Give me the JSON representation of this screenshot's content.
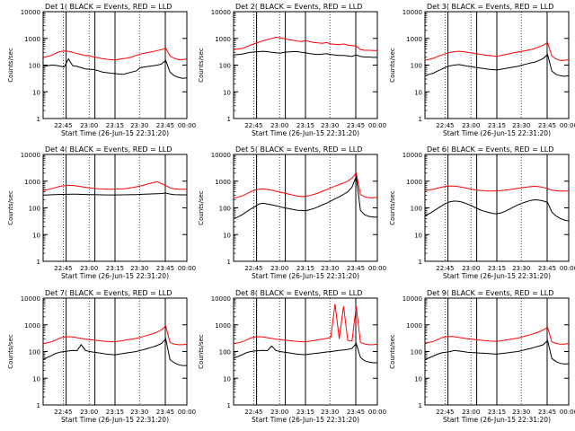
{
  "chart_data": {
    "type": "line",
    "panels": [
      {
        "title": "Det 1( BLACK = Events, RED = LLD",
        "black": [
          90,
          95,
          100,
          98,
          92,
          85,
          170,
          95,
          90,
          80,
          72,
          70,
          68,
          62,
          55,
          52,
          50,
          48,
          46,
          45,
          50,
          55,
          60,
          80,
          85,
          90,
          95,
          100,
          110,
          150,
          55,
          40,
          35,
          32,
          33
        ],
        "red": [
          190,
          210,
          230,
          280,
          320,
          340,
          330,
          300,
          270,
          250,
          230,
          220,
          200,
          190,
          175,
          165,
          160,
          155,
          165,
          175,
          185,
          200,
          230,
          260,
          280,
          300,
          320,
          350,
          380,
          430,
          220,
          180,
          160,
          160,
          170
        ]
      },
      {
        "title": "Det 2( BLACK = Events, RED = LLD",
        "black": [
          240,
          250,
          260,
          280,
          300,
          310,
          320,
          330,
          320,
          300,
          290,
          280,
          300,
          310,
          320,
          320,
          300,
          290,
          270,
          260,
          250,
          260,
          270,
          250,
          240,
          230,
          230,
          220,
          210,
          240,
          210,
          200,
          200,
          195,
          195
        ],
        "red": [
          380,
          400,
          420,
          480,
          560,
          640,
          720,
          820,
          900,
          1000,
          1100,
          1050,
          980,
          900,
          860,
          800,
          760,
          820,
          760,
          700,
          680,
          650,
          700,
          620,
          600,
          580,
          620,
          560,
          540,
          520,
          380,
          360,
          360,
          350,
          350
        ]
      },
      {
        "title": "Det 3( BLACK = Events, RED = LLD",
        "black": [
          40,
          45,
          50,
          60,
          70,
          85,
          95,
          100,
          105,
          98,
          92,
          88,
          82,
          78,
          74,
          70,
          68,
          66,
          70,
          75,
          80,
          85,
          90,
          100,
          110,
          120,
          130,
          150,
          180,
          250,
          60,
          45,
          40,
          38,
          40
        ],
        "red": [
          150,
          165,
          180,
          210,
          240,
          270,
          300,
          320,
          330,
          320,
          300,
          285,
          270,
          255,
          240,
          230,
          220,
          210,
          230,
          250,
          270,
          290,
          310,
          330,
          350,
          380,
          420,
          480,
          560,
          700,
          220,
          170,
          150,
          150,
          160
        ]
      },
      {
        "title": "Det 4( BLACK = Events, RED = LLD",
        "black": [
          300,
          305,
          310,
          315,
          320,
          320,
          322,
          325,
          325,
          320,
          318,
          315,
          312,
          310,
          308,
          305,
          305,
          305,
          306,
          308,
          310,
          312,
          315,
          320,
          325,
          330,
          335,
          340,
          345,
          360,
          330,
          315,
          310,
          308,
          308
        ],
        "red": [
          450,
          480,
          520,
          580,
          640,
          680,
          700,
          690,
          660,
          620,
          590,
          560,
          540,
          520,
          510,
          500,
          500,
          505,
          510,
          520,
          540,
          570,
          610,
          660,
          720,
          800,
          880,
          950,
          800,
          680,
          560,
          520,
          500,
          500,
          500
        ]
      },
      {
        "title": "Det 5( BLACK = Events, RED = LLD",
        "black": [
          40,
          45,
          55,
          70,
          90,
          110,
          140,
          150,
          140,
          130,
          120,
          110,
          100,
          95,
          88,
          82,
          80,
          78,
          85,
          95,
          110,
          130,
          150,
          180,
          220,
          260,
          320,
          400,
          600,
          1500,
          80,
          55,
          48,
          45,
          45
        ],
        "red": [
          230,
          250,
          280,
          330,
          400,
          460,
          500,
          510,
          490,
          460,
          420,
          390,
          360,
          330,
          300,
          280,
          270,
          270,
          290,
          320,
          360,
          420,
          480,
          560,
          650,
          750,
          850,
          1000,
          1300,
          2000,
          320,
          260,
          240,
          240,
          250
        ]
      },
      {
        "title": "Det 6( BLACK = Events, RED = LLD",
        "black": [
          50,
          60,
          75,
          95,
          120,
          150,
          170,
          180,
          175,
          160,
          140,
          120,
          100,
          85,
          75,
          68,
          62,
          60,
          65,
          75,
          90,
          110,
          130,
          150,
          170,
          190,
          200,
          195,
          180,
          160,
          70,
          50,
          40,
          35,
          32
        ],
        "red": [
          450,
          470,
          500,
          550,
          600,
          640,
          660,
          650,
          620,
          580,
          540,
          500,
          470,
          450,
          440,
          430,
          430,
          435,
          445,
          460,
          480,
          510,
          540,
          570,
          600,
          620,
          640,
          620,
          580,
          520,
          460,
          440,
          430,
          430,
          430
        ]
      },
      {
        "title": "Det 7( BLACK = Events, RED = LLD",
        "black": [
          50,
          60,
          70,
          85,
          95,
          100,
          105,
          110,
          108,
          180,
          110,
          100,
          95,
          90,
          85,
          80,
          78,
          75,
          80,
          85,
          90,
          95,
          100,
          110,
          120,
          135,
          150,
          170,
          200,
          300,
          50,
          38,
          32,
          30,
          30
        ],
        "red": [
          200,
          210,
          230,
          270,
          320,
          350,
          360,
          350,
          330,
          310,
          290,
          280,
          270,
          260,
          250,
          240,
          235,
          230,
          245,
          260,
          275,
          290,
          310,
          340,
          380,
          420,
          470,
          540,
          650,
          900,
          220,
          190,
          180,
          180,
          190
        ]
      },
      {
        "title": "Det 8( BLACK = Events, RED = LLD",
        "black": [
          55,
          65,
          75,
          90,
          100,
          105,
          108,
          110,
          108,
          160,
          110,
          100,
          95,
          90,
          85,
          80,
          78,
          76,
          80,
          84,
          88,
          92,
          96,
          100,
          105,
          110,
          115,
          120,
          130,
          200,
          60,
          45,
          40,
          38,
          38
        ],
        "red": [
          200,
          210,
          230,
          270,
          320,
          350,
          360,
          350,
          330,
          310,
          290,
          280,
          270,
          260,
          250,
          240,
          235,
          230,
          245,
          260,
          275,
          290,
          310,
          340,
          6000,
          300,
          5000,
          260,
          250,
          5000,
          220,
          190,
          180,
          180,
          190
        ]
      },
      {
        "title": "Det 9( BLACK = Events, RED = LLD",
        "black": [
          50,
          58,
          68,
          80,
          90,
          95,
          100,
          110,
          105,
          100,
          95,
          92,
          90,
          88,
          86,
          84,
          82,
          80,
          84,
          88,
          92,
          96,
          100,
          110,
          120,
          130,
          145,
          160,
          180,
          260,
          55,
          42,
          36,
          34,
          35
        ],
        "red": [
          210,
          220,
          240,
          280,
          330,
          360,
          370,
          360,
          340,
          320,
          300,
          290,
          280,
          270,
          260,
          250,
          245,
          240,
          255,
          270,
          285,
          300,
          320,
          350,
          390,
          430,
          480,
          550,
          650,
          800,
          230,
          200,
          190,
          190,
          200
        ]
      }
    ],
    "ylabel": "Counts/sec",
    "xlabel": "Start Time (26-Jun-15 22:31:20)",
    "x_tick_labels": [
      "22:45",
      "23:00",
      "23:15",
      "23:30",
      "23:45",
      "00:00"
    ],
    "y_tick_labels": [
      "1",
      "10",
      "100",
      "1000",
      "10000"
    ],
    "ylim": [
      1,
      10000
    ],
    "yscale": "log",
    "series_colors": {
      "black": "#000000",
      "red": "#ff0000"
    }
  }
}
